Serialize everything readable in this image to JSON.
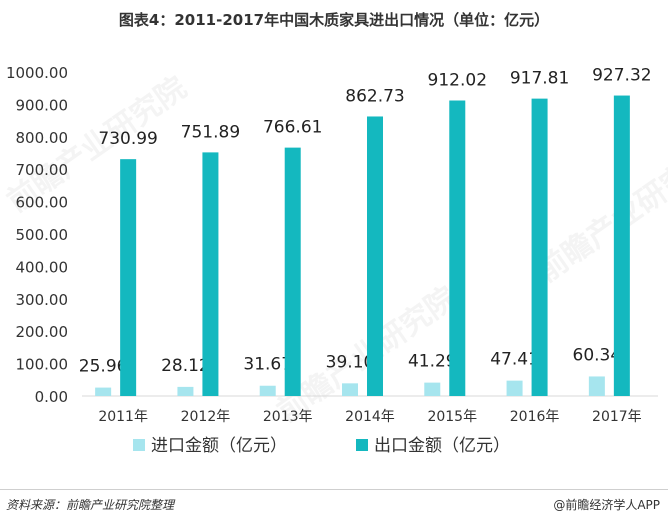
{
  "title": "图表4：2011-2017年中国木质家具进出口情况（单位：亿元）",
  "source": "资料来源：前瞻产业研究院整理",
  "brand": "@前瞻经济学人APP",
  "watermark": "前瞻产业研究院",
  "colors": {
    "import": "#a6e5ee",
    "export": "#14b8bf",
    "axis": "#d9d9d9",
    "text": "#333333"
  },
  "chart_data": {
    "type": "bar",
    "categories": [
      "2011年",
      "2012年",
      "2013年",
      "2014年",
      "2015年",
      "2016年",
      "2017年"
    ],
    "series": [
      {
        "name": "进口金额（亿元）",
        "values": [
          25.96,
          28.12,
          31.67,
          39.1,
          41.29,
          47.41,
          60.34
        ]
      },
      {
        "name": "出口金额（亿元）",
        "values": [
          730.99,
          751.89,
          766.61,
          862.73,
          912.02,
          917.81,
          927.32
        ]
      }
    ],
    "ylim": [
      0,
      1000
    ],
    "yticks": [
      "0.00",
      "100.00",
      "200.00",
      "300.00",
      "400.00",
      "500.00",
      "600.00",
      "700.00",
      "800.00",
      "900.00",
      "1000.00"
    ],
    "legend_position": "bottom",
    "grid": false
  }
}
